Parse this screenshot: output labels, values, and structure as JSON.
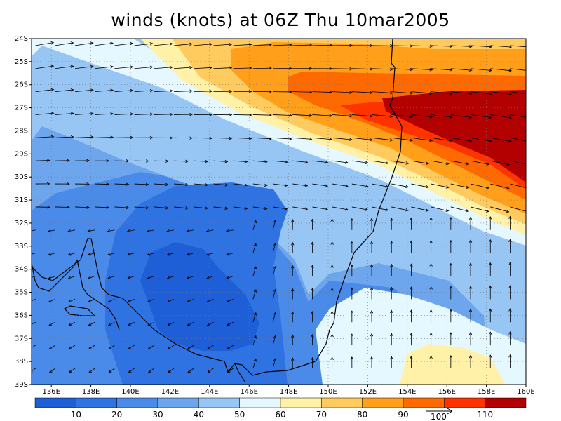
{
  "title": "winds (knots) at 06Z Thu 10mar2005",
  "map": {
    "lon_range": [
      135,
      160
    ],
    "lat_range": [
      -39,
      -24
    ],
    "lat_labels": [
      "24S",
      "25S",
      "26S",
      "27S",
      "28S",
      "29S",
      "30S",
      "31S",
      "32S",
      "33S",
      "34S",
      "35S",
      "36S",
      "37S",
      "38S",
      "39S"
    ],
    "lon_labels": [
      "136E",
      "138E",
      "140E",
      "142E",
      "144E",
      "146E",
      "148E",
      "150E",
      "152E",
      "154E",
      "156E",
      "158E",
      "160E"
    ],
    "grid": true,
    "coastline": "south-east Australia"
  },
  "colorbar": {
    "levels": [
      "10",
      "20",
      "30",
      "40",
      "50",
      "60",
      "70",
      "80",
      "90",
      "100",
      "110"
    ],
    "colors": [
      "#1e5fd8",
      "#2f73e2",
      "#4a8ae8",
      "#6ea6ee",
      "#97c5f4",
      "#e6f8ff",
      "#fff2a8",
      "#ffca5e",
      "#ff9f1a",
      "#ff6a00",
      "#ff3300",
      "#b30000"
    ],
    "reference_vector_label": "100"
  }
}
